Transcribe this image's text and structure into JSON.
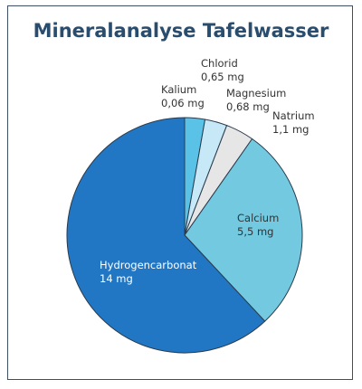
{
  "chart_data": {
    "type": "pie",
    "title": "Mineralanalyse Tafelwasser",
    "unit": "mg",
    "slices": [
      {
        "name": "Kalium",
        "value": 0.06,
        "value_label": "0,06 mg",
        "color": "#5bc2e7"
      },
      {
        "name": "Chlorid",
        "value": 0.65,
        "value_label": "0,65 mg",
        "color": "#bfe6f5"
      },
      {
        "name": "Magnesium",
        "value": 0.68,
        "value_label": "0,68 mg",
        "color": "#e8e8e8"
      },
      {
        "name": "Natrium",
        "value": 1.1,
        "value_label": "1,1 mg",
        "color": "#72c9e0"
      },
      {
        "name": "Calcium",
        "value": 5.5,
        "value_label": "5,5 mg",
        "color": "#2277c4"
      },
      {
        "name": "Hydrogencarbonat",
        "value": 14,
        "value_label": "14 mg",
        "color": "#2277c4"
      }
    ]
  }
}
